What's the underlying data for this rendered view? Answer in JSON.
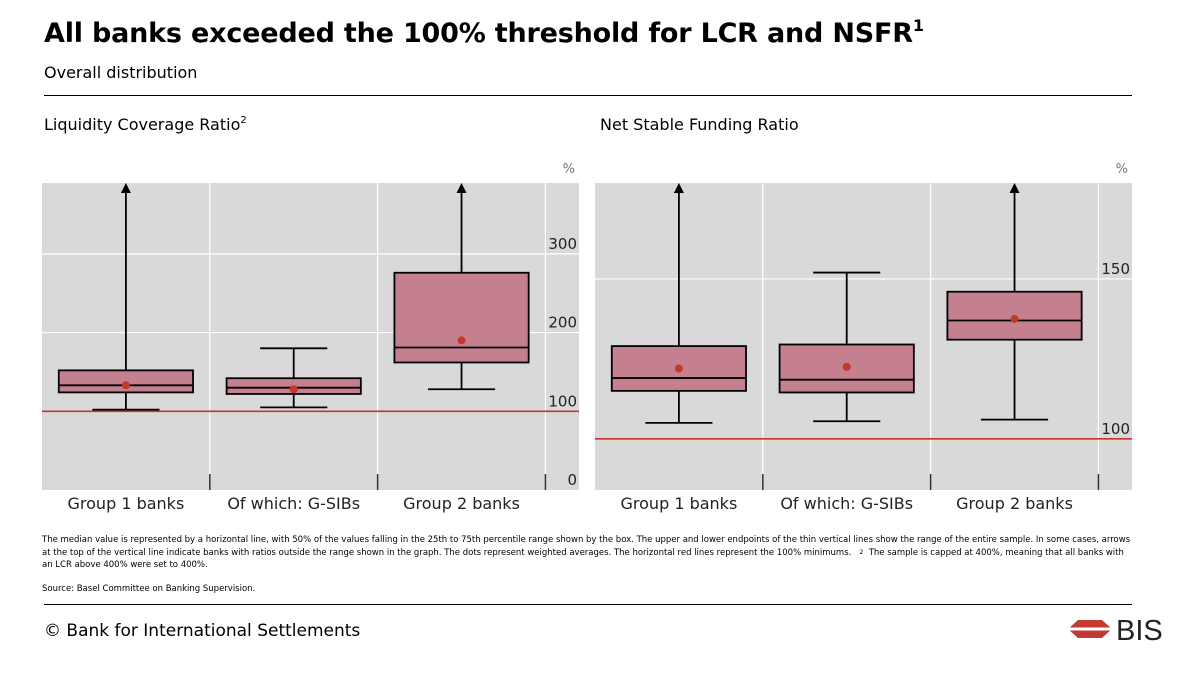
{
  "title": "All banks exceeded the 100% threshold for LCR and NSFR",
  "title_sup": "1",
  "subtitle": "Overall distribution",
  "colors": {
    "plot_bg": "#d9d9d9",
    "grid": "#ffffff",
    "box_fill": "#c4808f",
    "threshold": "#c0392b",
    "mean_dot": "#c0392b",
    "logo_red": "#c23b32"
  },
  "chart_data": [
    {
      "type": "boxplot",
      "title": "Liquidity Coverage Ratio",
      "title_sup": "2",
      "unit": "%",
      "ylim": [
        0,
        390
      ],
      "yticks": [
        0,
        100,
        200,
        300
      ],
      "ytick_labels": [
        "0",
        "100",
        "200",
        "300"
      ],
      "threshold": 100,
      "categories": [
        "Group 1 banks",
        "Of which: G-SIBs",
        "Group 2 banks"
      ],
      "boxes": [
        {
          "min": 102,
          "q1": 124,
          "median": 133,
          "q3": 152,
          "max": 400,
          "mean": 133,
          "arrow": true
        },
        {
          "min": 105,
          "q1": 122,
          "median": 130,
          "q3": 142,
          "max": 180,
          "mean": 128,
          "arrow": false
        },
        {
          "min": 128,
          "q1": 162,
          "median": 181,
          "q3": 276,
          "max": 400,
          "mean": 190,
          "arrow": true
        }
      ]
    },
    {
      "type": "boxplot",
      "title": "Net Stable Funding Ratio",
      "title_sup": "",
      "unit": "%",
      "ylim": [
        84,
        180
      ],
      "yticks": [
        100,
        150
      ],
      "ytick_labels": [
        "100",
        "150"
      ],
      "threshold": 100,
      "categories": [
        "Group 1 banks",
        "Of which: G-SIBs",
        "Group 2 banks"
      ],
      "boxes": [
        {
          "min": 105,
          "q1": 115,
          "median": 119,
          "q3": 129,
          "max": 180,
          "mean": 122,
          "arrow": true
        },
        {
          "min": 105.5,
          "q1": 114.5,
          "median": 118.5,
          "q3": 129.5,
          "max": 152,
          "mean": 122.5,
          "arrow": false
        },
        {
          "min": 106,
          "q1": 131,
          "median": 137,
          "q3": 146,
          "max": 180,
          "mean": 137.5,
          "arrow": true
        }
      ]
    }
  ],
  "footnote": "The median value is represented by a horizontal line, with 50% of the values falling in the 25th to 75th percentile range shown by the box. The upper and lower endpoints of the thin vertical lines show the range of the entire sample. In some cases, arrows at the top of the vertical line indicate banks with ratios outside the range shown in the graph. The dots represent weighted averages. The horizontal red lines represent the 100% minimums.",
  "footnote2_marker": "2",
  "footnote2": "The sample is capped at 400%, meaning that all banks with an LCR above 400% were set to 400%.",
  "source": "Source: Basel Committee on Banking Supervision.",
  "copyright": "© Bank for International Settlements",
  "logo_text": "BIS"
}
